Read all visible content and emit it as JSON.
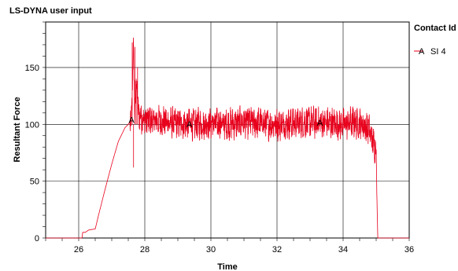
{
  "chart_data": {
    "type": "line",
    "title": "LS-DYNA user input",
    "xlabel": "Time",
    "ylabel": "Resultant Force",
    "xlim": [
      25,
      36
    ],
    "ylim": [
      0,
      190
    ],
    "xticks": [
      26,
      28,
      30,
      32,
      34,
      36
    ],
    "yticks": [
      0,
      50,
      100,
      150
    ],
    "grid": true,
    "legend": {
      "title": "Contact Id",
      "placement": "top-right"
    },
    "series": [
      {
        "name": "SI 4",
        "marker_letter": "A",
        "color": "#e8001c",
        "markers_x": [
          27.6,
          29.35,
          33.3
        ],
        "x": [
          25.0,
          26.0,
          26.1,
          26.12,
          26.2,
          26.3,
          26.5,
          26.6,
          26.8,
          27.0,
          27.2,
          27.4,
          27.5,
          27.6,
          27.65,
          27.7,
          27.75,
          27.8,
          27.9,
          28.0,
          28.3,
          28.6,
          29.0,
          29.5,
          30.0,
          30.5,
          31.0,
          31.5,
          32.0,
          32.5,
          33.0,
          33.5,
          34.0,
          34.3,
          34.6,
          34.8,
          34.9,
          34.95,
          35.0,
          35.02,
          35.05,
          35.1,
          35.5,
          36.0
        ],
        "y": [
          0,
          0,
          0,
          5,
          5,
          7,
          8,
          20,
          43,
          65,
          85,
          97,
          100,
          104,
          170,
          108,
          140,
          110,
          106,
          104,
          103,
          102,
          101,
          100,
          101,
          100,
          102,
          101,
          100,
          101,
          102,
          101,
          100,
          102,
          100,
          95,
          85,
          80,
          82,
          40,
          0,
          0,
          0,
          0
        ],
        "noise": {
          "x_range": [
            27.55,
            35.0
          ],
          "amplitude": 12
        }
      }
    ]
  }
}
